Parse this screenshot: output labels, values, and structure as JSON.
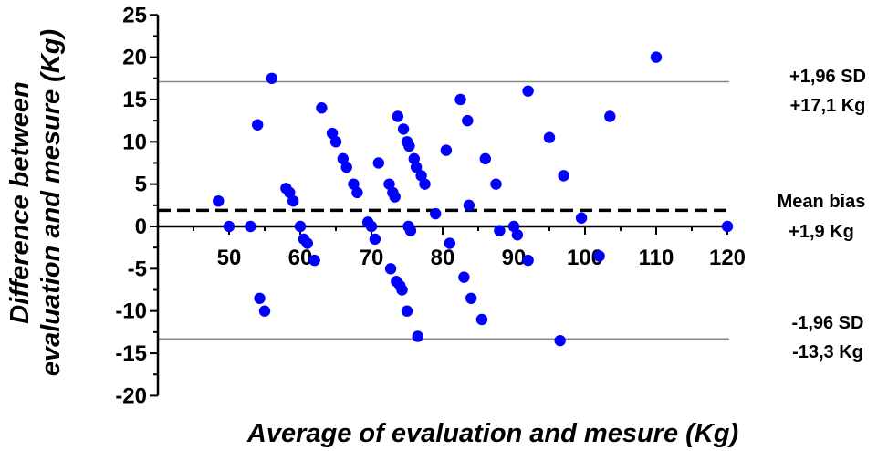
{
  "chart_data": {
    "type": "scatter",
    "title": "",
    "xlabel": "Average of evaluation and mesure (Kg)",
    "ylabel_line1": "Difference between",
    "ylabel_line2": "evaluation and mesure (Kg)",
    "xlim": [
      40,
      120
    ],
    "ylim": [
      -20,
      25
    ],
    "x_ticks": [
      50,
      60,
      70,
      80,
      90,
      100,
      110,
      120
    ],
    "y_ticks": [
      25,
      20,
      15,
      10,
      5,
      0,
      -5,
      -10,
      -15,
      -20
    ],
    "grid": false,
    "marker_color": "#0000ff",
    "reference_lines": [
      {
        "y": 17.1,
        "style": "solid",
        "color": "#888888",
        "label_line1": "+1,96 SD",
        "label_line2": "+17,1 Kg"
      },
      {
        "y": 1.9,
        "style": "dashed",
        "color": "#000000",
        "label_line1": "Mean bias",
        "label_line2": "+1,9 Kg"
      },
      {
        "y": -13.3,
        "style": "solid",
        "color": "#888888",
        "label_line1": "-1,96 SD",
        "label_line2": "-13,3 Kg"
      }
    ],
    "points": [
      [
        48.5,
        3
      ],
      [
        50,
        0
      ],
      [
        53,
        0
      ],
      [
        54,
        12
      ],
      [
        54.3,
        -8.5
      ],
      [
        55,
        -10
      ],
      [
        56,
        17.5
      ],
      [
        58,
        4.5
      ],
      [
        58.5,
        4
      ],
      [
        59,
        3
      ],
      [
        60,
        0
      ],
      [
        60.5,
        -1.5
      ],
      [
        61,
        -2
      ],
      [
        62,
        -4
      ],
      [
        63,
        14
      ],
      [
        64.5,
        11
      ],
      [
        65,
        10
      ],
      [
        66,
        8
      ],
      [
        66.5,
        7
      ],
      [
        67.5,
        5
      ],
      [
        68,
        4
      ],
      [
        69.5,
        0.5
      ],
      [
        70,
        0
      ],
      [
        70.5,
        -1.5
      ],
      [
        71,
        7.5
      ],
      [
        72.5,
        5
      ],
      [
        72.7,
        -5
      ],
      [
        73,
        4
      ],
      [
        73.3,
        3.5
      ],
      [
        73.5,
        -6.5
      ],
      [
        73.7,
        13
      ],
      [
        74,
        -7
      ],
      [
        74.3,
        -7.5
      ],
      [
        74.5,
        11.5
      ],
      [
        75,
        10
      ],
      [
        75.2,
        0
      ],
      [
        75.3,
        9.5
      ],
      [
        75.5,
        -0.5
      ],
      [
        75,
        -10
      ],
      [
        76,
        8
      ],
      [
        76.3,
        7
      ],
      [
        76.5,
        -13
      ],
      [
        77,
        6
      ],
      [
        77.5,
        5
      ],
      [
        79,
        1.5
      ],
      [
        80.5,
        9
      ],
      [
        81,
        -2
      ],
      [
        82.5,
        15
      ],
      [
        83,
        -6
      ],
      [
        83.5,
        12.5
      ],
      [
        83.7,
        2.5
      ],
      [
        84,
        -8.5
      ],
      [
        85.5,
        -11
      ],
      [
        86,
        8
      ],
      [
        87.5,
        5
      ],
      [
        88,
        -0.5
      ],
      [
        90,
        0
      ],
      [
        90.5,
        -1
      ],
      [
        92,
        16
      ],
      [
        92,
        -4
      ],
      [
        95,
        10.5
      ],
      [
        96.5,
        -13.5
      ],
      [
        97,
        6
      ],
      [
        99.5,
        1
      ],
      [
        102,
        -3.5
      ],
      [
        103.5,
        13
      ],
      [
        110,
        20
      ],
      [
        120,
        0
      ]
    ]
  }
}
